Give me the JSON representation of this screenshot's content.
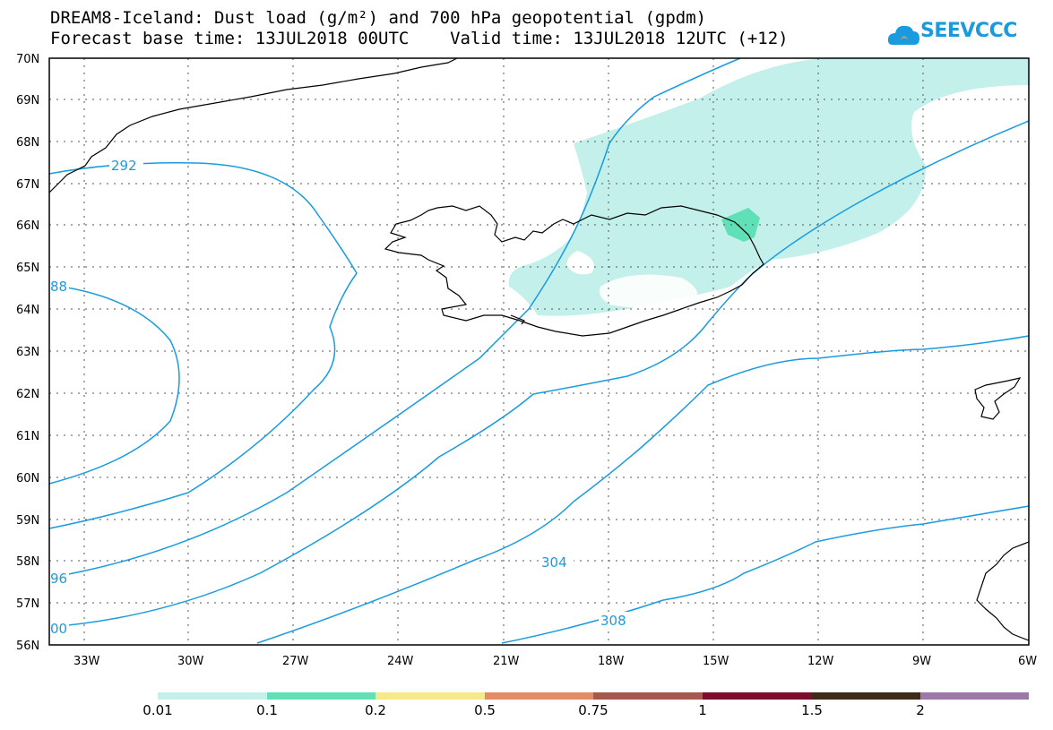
{
  "title": {
    "line1": "DREAM8-Iceland: Dust load (g/m²) and 700 hPa geopotential (gpdm)",
    "line2": "Forecast base time: 13JUL2018 00UTC    Valid time: 13JUL2018 12UTC (+12)"
  },
  "logo": {
    "text": "SEEVCCC",
    "icon": "cloud-icon"
  },
  "map": {
    "lat_labels": [
      "70N",
      "69N",
      "68N",
      "67N",
      "66N",
      "65N",
      "64N",
      "63N",
      "62N",
      "61N",
      "60N",
      "59N",
      "58N",
      "57N",
      "56N"
    ],
    "lon_labels": [
      "33W",
      "30W",
      "27W",
      "24W",
      "21W",
      "18W",
      "15W",
      "12W",
      "9W",
      "6W"
    ],
    "contour_labels": [
      "292",
      "304",
      "308",
      "88",
      "96",
      "00"
    ],
    "colors": {
      "contour": "#1a9be0",
      "coast": "#000000",
      "dust_low": "#c3f0ea",
      "dust_mid": "#5fe0b6"
    }
  },
  "colorbar": {
    "labels": [
      "0.01",
      "0.1",
      "0.2",
      "0.5",
      "0.75",
      "1",
      "1.5",
      "2"
    ],
    "colors": [
      "#c3f0ea",
      "#5fe0b6",
      "#f7e98a",
      "#e58b68",
      "#a65a4e",
      "#7e0c2e",
      "#3e2a16",
      "#9e78a8"
    ]
  }
}
